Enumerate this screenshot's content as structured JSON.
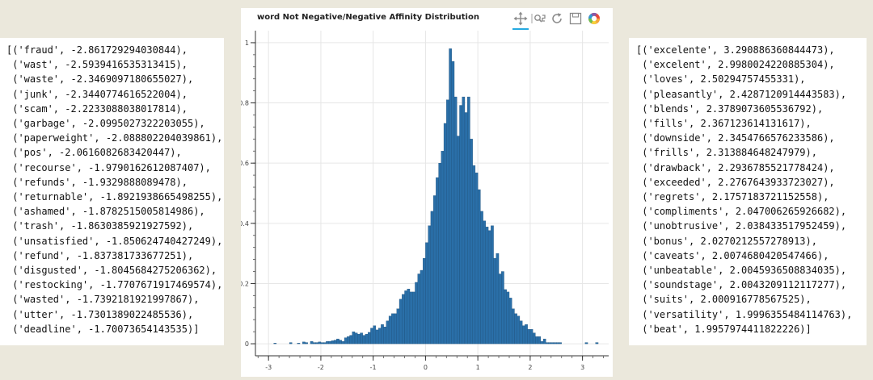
{
  "left_list": [
    "[('fraud', -2.861729294030844),",
    " ('wast', -2.5939416535313415),",
    " ('waste', -2.3469097180655027),",
    " ('junk', -2.3440774616522004),",
    " ('scam', -2.2233088038017814),",
    " ('garbage', -2.0995027322203055),",
    " ('paperweight', -2.088802204039861),",
    " ('pos', -2.0616082683420447),",
    " ('recourse', -1.9790162612087407),",
    " ('refunds', -1.9329888089478),",
    " ('returnable', -1.8921938665498255),",
    " ('ashamed', -1.8782515005814986),",
    " ('trash', -1.8630385921927592),",
    " ('unsatisfied', -1.850624740427249),",
    " ('refund', -1.837381733677251),",
    " ('disgusted', -1.8045684275206362),",
    " ('restocking', -1.7707671917469574),",
    " ('wasted', -1.7392181921997867),",
    " ('utter', -1.7301389022485536),",
    " ('deadline', -1.70073654143535)]"
  ],
  "right_list": [
    "[('excelente', 3.290886360844473),",
    " ('excelent', 2.9980024220885304),",
    " ('loves', 2.50294757455331),",
    " ('pleasantly', 2.4287120914443583),",
    " ('blends', 2.3789073605536792),",
    " ('fills', 2.367123614131617),",
    " ('downside', 2.3454766576233586),",
    " ('frills', 2.313884648247979),",
    " ('drawback', 2.2936785521778424),",
    " ('exceeded', 2.2767643933723027),",
    " ('regrets', 2.1757183721152558),",
    " ('compliments', 2.047006265926682),",
    " ('unobtrusive', 2.038433517952459),",
    " ('bonus', 2.0270212557278913),",
    " ('caveats', 2.0074680420547466),",
    " ('unbeatable', 2.0045936508834035),",
    " ('soundstage', 2.0043209112117277),",
    " ('suits', 2.000916778567525),",
    " ('versatility', 1.9996355484114763),",
    " ('beat', 1.9957974411822226)]"
  ],
  "toolbar": {
    "icons": [
      "pan-icon",
      "box-zoom-icon",
      "reset-icon",
      "save-icon",
      "bokeh-logo-icon"
    ],
    "active_color": "#26aae1"
  },
  "chart_data": {
    "type": "bar",
    "title": "word Not Negative/Negative Affinity Distribution",
    "xlabel": "",
    "ylabel": "",
    "xlim": [
      -3.25,
      3.5
    ],
    "ylim": [
      -0.04,
      1.04
    ],
    "xticks": [
      -3,
      -2,
      -1,
      0,
      1,
      2,
      3
    ],
    "yticks": [
      0,
      0.2,
      0.4,
      0.6,
      0.8,
      1
    ],
    "grid": true,
    "bar_color": "#2a6fa8",
    "bin_width": 0.05,
    "x": [
      -2.9,
      -2.85,
      -2.8,
      -2.75,
      -2.7,
      -2.65,
      -2.6,
      -2.55,
      -2.5,
      -2.45,
      -2.4,
      -2.35,
      -2.3,
      -2.25,
      -2.2,
      -2.15,
      -2.1,
      -2.05,
      -2.0,
      -1.95,
      -1.9,
      -1.85,
      -1.8,
      -1.75,
      -1.7,
      -1.65,
      -1.6,
      -1.55,
      -1.5,
      -1.45,
      -1.4,
      -1.35,
      -1.3,
      -1.25,
      -1.2,
      -1.15,
      -1.1,
      -1.05,
      -1.0,
      -0.95,
      -0.9,
      -0.85,
      -0.8,
      -0.75,
      -0.7,
      -0.65,
      -0.6,
      -0.55,
      -0.5,
      -0.45,
      -0.4,
      -0.35,
      -0.3,
      -0.25,
      -0.2,
      -0.15,
      -0.1,
      -0.05,
      0.0,
      0.05,
      0.1,
      0.15,
      0.2,
      0.25,
      0.3,
      0.35,
      0.4,
      0.45,
      0.5,
      0.55,
      0.6,
      0.65,
      0.7,
      0.75,
      0.8,
      0.85,
      0.9,
      0.95,
      1.0,
      1.05,
      1.1,
      1.15,
      1.2,
      1.25,
      1.3,
      1.35,
      1.4,
      1.45,
      1.5,
      1.55,
      1.6,
      1.65,
      1.7,
      1.75,
      1.8,
      1.85,
      1.9,
      1.95,
      2.0,
      2.05,
      2.1,
      2.15,
      2.2,
      2.25,
      2.3,
      2.35,
      2.4,
      2.45,
      2.5,
      2.55,
      2.6,
      2.65,
      2.7,
      2.75,
      2.8,
      2.85,
      2.9,
      2.95,
      3.0,
      3.05,
      3.1,
      3.15,
      3.2,
      3.25
    ],
    "values": [
      0.002,
      0.0,
      0.0,
      0.0,
      0.0,
      0.0,
      0.004,
      0.0,
      0.0,
      0.002,
      0.0,
      0.006,
      0.004,
      0.0,
      0.008,
      0.004,
      0.004,
      0.006,
      0.004,
      0.004,
      0.008,
      0.008,
      0.01,
      0.012,
      0.016,
      0.012,
      0.008,
      0.02,
      0.024,
      0.028,
      0.04,
      0.036,
      0.032,
      0.036,
      0.028,
      0.032,
      0.038,
      0.052,
      0.06,
      0.046,
      0.052,
      0.064,
      0.056,
      0.076,
      0.092,
      0.1,
      0.1,
      0.116,
      0.148,
      0.164,
      0.176,
      0.182,
      0.172,
      0.172,
      0.204,
      0.232,
      0.244,
      0.284,
      0.336,
      0.392,
      0.44,
      0.492,
      0.552,
      0.6,
      0.64,
      0.732,
      0.81,
      0.98,
      0.938,
      0.82,
      0.69,
      0.792,
      0.82,
      0.768,
      0.82,
      0.68,
      0.592,
      0.568,
      0.512,
      0.44,
      0.408,
      0.388,
      0.376,
      0.392,
      0.284,
      0.3,
      0.232,
      0.24,
      0.18,
      0.172,
      0.152,
      0.116,
      0.1,
      0.092,
      0.076,
      0.06,
      0.064,
      0.048,
      0.048,
      0.036,
      0.024,
      0.024,
      0.008,
      0.016,
      0.004,
      0.004,
      0.004,
      0.004,
      0.004,
      0.004,
      0.0,
      0.0,
      0.0,
      0.0,
      0.0,
      0.0,
      0.0,
      0.0,
      0.0,
      0.004,
      0.0,
      0.0,
      0.0,
      0.004
    ]
  }
}
